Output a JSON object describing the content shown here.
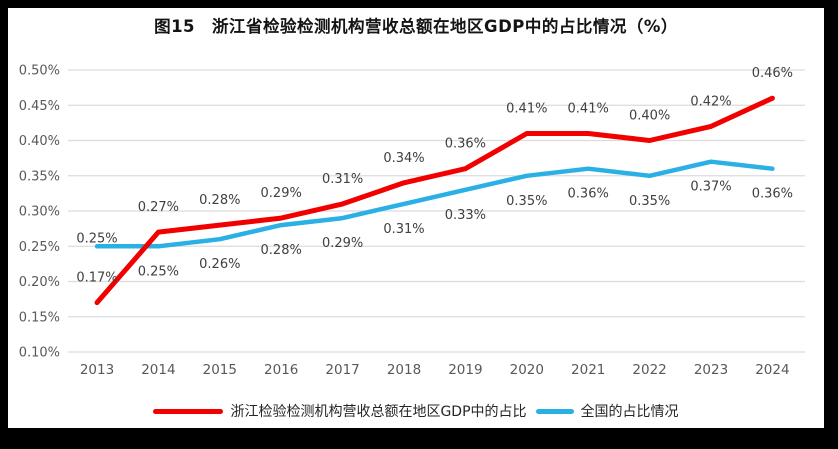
{
  "title": "图15　浙江省检验检测机构营收总额在地区GDP中的占比情况（%）",
  "chart_data": {
    "type": "line",
    "title": "图15　浙江省检验检测机构营收总额在地区GDP中的占比情况（%）",
    "categories": [
      "2013",
      "2014",
      "2015",
      "2016",
      "2017",
      "2018",
      "2019",
      "2020",
      "2021",
      "2022",
      "2023",
      "2024"
    ],
    "series": [
      {
        "name": "浙江检验检测机构营收总额在地区GDP中的占比",
        "color": "#F20000",
        "values": [
          0.17,
          0.27,
          0.28,
          0.29,
          0.31,
          0.34,
          0.36,
          0.41,
          0.41,
          0.4,
          0.42,
          0.46
        ],
        "labels": [
          "0.17%",
          "0.27%",
          "0.28%",
          "0.29%",
          "0.31%",
          "0.34%",
          "0.36%",
          "0.41%",
          "0.41%",
          "0.40%",
          "0.42%",
          "0.46%"
        ]
      },
      {
        "name": "全国的占比情况",
        "color": "#2BB0E6",
        "values": [
          0.25,
          0.25,
          0.26,
          0.28,
          0.29,
          0.31,
          0.33,
          0.35,
          0.36,
          0.35,
          0.37,
          0.36
        ],
        "labels": [
          "0.25%",
          "0.25%",
          "0.26%",
          "0.28%",
          "0.29%",
          "0.31%",
          "0.33%",
          "0.35%",
          "0.36%",
          "0.35%",
          "0.37%",
          "0.36%"
        ]
      }
    ],
    "y_ticks": [
      "0.50%",
      "0.45%",
      "0.40%",
      "0.35%",
      "0.30%",
      "0.25%",
      "0.20%",
      "0.15%",
      "0.10%"
    ],
    "ylim": [
      0.1,
      0.5
    ],
    "xlabel": "",
    "ylabel": "",
    "grid": true,
    "data_labels": true,
    "legend_position": "bottom"
  },
  "colors": {
    "grid": "#DCDCDC",
    "axis_text": "#595959",
    "data_label_text": "#404040",
    "frame_border": "#000000"
  }
}
